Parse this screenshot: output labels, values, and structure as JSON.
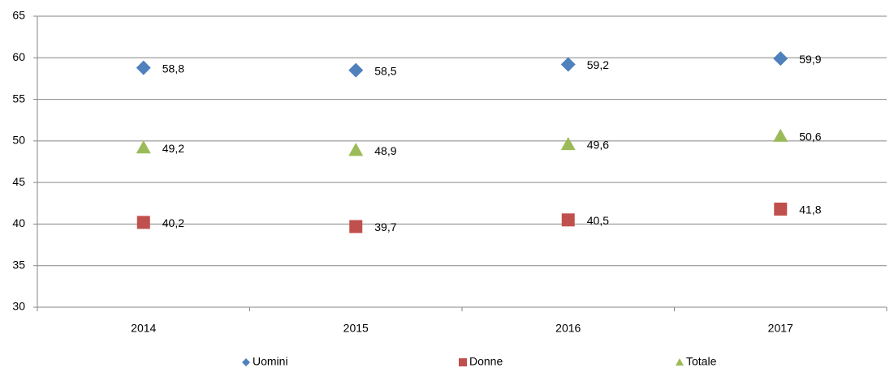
{
  "chart_data": {
    "type": "scatter",
    "categories": [
      "2014",
      "2015",
      "2016",
      "2017"
    ],
    "series": [
      {
        "name": "Uomini",
        "color": "#4f81bd",
        "marker": "diamond",
        "values": [
          58.8,
          58.5,
          59.2,
          59.9
        ],
        "value_labels": [
          "58,8",
          "58,5",
          "59,2",
          "59,9"
        ]
      },
      {
        "name": "Donne",
        "color": "#c0504d",
        "marker": "square",
        "values": [
          40.2,
          39.7,
          40.5,
          41.8
        ],
        "value_labels": [
          "40,2",
          "39,7",
          "40,5",
          "41,8"
        ]
      },
      {
        "name": "Totale",
        "color": "#9bbb59",
        "marker": "triangle",
        "values": [
          49.2,
          48.9,
          49.6,
          50.6
        ],
        "value_labels": [
          "49,2",
          "48,9",
          "49,6",
          "50,6"
        ]
      }
    ],
    "ylim": [
      30,
      65
    ],
    "yticks": [
      30,
      35,
      40,
      45,
      50,
      55,
      60,
      65
    ],
    "grid": true,
    "legend": "bottom"
  }
}
